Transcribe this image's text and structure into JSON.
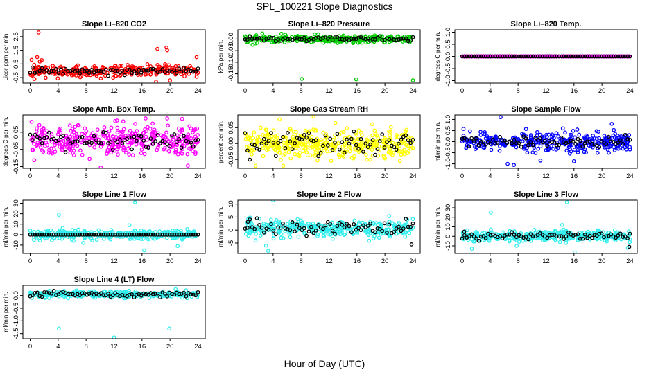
{
  "figure": {
    "title": "SPL_100221  Slope Diagnostics",
    "xlabel": "Hour of Day (UTC)"
  },
  "colors": {
    "black": "#000000"
  },
  "chart_data": [
    {
      "type": "scatter",
      "title": "Slope Li–820 CO2",
      "ylabel": "Licor ppm per min.",
      "xlim": [
        0,
        24
      ],
      "xticks": [
        "0",
        "4",
        "8",
        "12",
        "16",
        "20",
        "24"
      ],
      "ylim": [
        -0.9,
        3.0
      ],
      "yticks": [
        {
          "v": -0.5,
          "label": "-0.5"
        },
        {
          "v": 0.5,
          "label": "0.5"
        },
        {
          "v": 1.5,
          "label": "1.5"
        },
        {
          "v": 2.5,
          "label": "2.5"
        }
      ],
      "color": "#ff0000",
      "series": [
        {
          "name": "all",
          "center": 0,
          "spread": 0.22,
          "count": 300,
          "seed": 11,
          "outliers": [
            [
              1.2,
              2.8
            ],
            [
              1.0,
              1.0
            ],
            [
              0.2,
              0.8
            ],
            [
              18.2,
              1.6
            ],
            [
              19.5,
              1.7
            ],
            [
              19.6,
              1.5
            ],
            [
              23.8,
              1.0
            ],
            [
              18.0,
              -0.8
            ],
            [
              20,
              -0.7
            ],
            [
              0.6,
              -0.6
            ]
          ]
        },
        {
          "name": "hourly",
          "center": 0,
          "spread": 0.12,
          "count": 72,
          "seed": 12,
          "outliers": []
        }
      ]
    },
    {
      "type": "scatter",
      "title": "Slope Li–820 Pressure",
      "ylabel": "kPa per min.",
      "xlim": [
        0,
        24
      ],
      "xticks": [
        "0",
        "4",
        "8",
        "12",
        "16",
        "20",
        "24"
      ],
      "ylim": [
        -0.19,
        0.04
      ],
      "yticks": [
        {
          "v": 0.0,
          "label": "0.00"
        },
        {
          "v": -0.05,
          "label": "-0.05"
        },
        {
          "v": -0.1,
          "label": "-0.10"
        },
        {
          "v": -0.15,
          "label": "-0.15"
        }
      ],
      "color": "#00cc00",
      "series": [
        {
          "name": "all",
          "center": 0,
          "spread": 0.008,
          "count": 300,
          "seed": 21,
          "outliers": [
            [
              8.1,
              -0.172
            ],
            [
              15.9,
              -0.174
            ],
            [
              24,
              -0.178
            ],
            [
              0.2,
              -0.012
            ]
          ]
        },
        {
          "name": "hourly",
          "center": 0,
          "spread": 0.005,
          "count": 72,
          "seed": 22,
          "outliers": []
        }
      ]
    },
    {
      "type": "scatter",
      "title": "Slope Li–820 Temp.",
      "ylabel": "degrees C per min.",
      "xlim": [
        0,
        24
      ],
      "xticks": [
        "0",
        "4",
        "8",
        "12",
        "16",
        "20",
        "24"
      ],
      "ylim": [
        -1.1,
        1.1
      ],
      "yticks": [
        {
          "v": -1,
          "label": "-1.0"
        },
        {
          "v": -0.5,
          "label": "-0.5"
        },
        {
          "v": 0,
          "label": "0.0"
        },
        {
          "v": 0.5,
          "label": "0.5"
        },
        {
          "v": 1,
          "label": "1.0"
        }
      ],
      "color": "#ff00ff",
      "series": [
        {
          "name": "all",
          "center": 0,
          "spread": 0.0,
          "count": 300,
          "seed": 31,
          "outliers": []
        },
        {
          "name": "hourly",
          "center": 0,
          "spread": 0.0,
          "count": 72,
          "seed": 32,
          "outliers": []
        }
      ]
    },
    {
      "type": "scatter",
      "title": "Slope Amb. Box Temp.",
      "ylabel": "degrees C per min.",
      "xlim": [
        0,
        24
      ],
      "xticks": [
        "0",
        "4",
        "8",
        "12",
        "16",
        "20",
        "24"
      ],
      "ylim": [
        -0.16,
        0.15
      ],
      "yticks": [
        {
          "v": -0.15,
          "label": "-0.15"
        },
        {
          "v": -0.05,
          "label": "-0.05"
        },
        {
          "v": 0.05,
          "label": "0.05"
        }
      ],
      "color": "#ff00ff",
      "series": [
        {
          "name": "all",
          "center": 0,
          "spread": 0.045,
          "count": 380,
          "seed": 41,
          "outliers": [
            [
              10.1,
              -0.155
            ],
            [
              16.5,
              0.13
            ],
            [
              19.6,
              0.13
            ],
            [
              0.2,
              0.11
            ]
          ]
        },
        {
          "name": "hourly",
          "center": 0,
          "spread": 0.025,
          "count": 72,
          "seed": 42,
          "outliers": []
        }
      ]
    },
    {
      "type": "scatter",
      "title": "Slope Gas Stream RH",
      "ylabel": "percent per min.",
      "xlim": [
        0,
        24
      ],
      "xticks": [
        "0",
        "4",
        "8",
        "12",
        "16",
        "20",
        "24"
      ],
      "ylim": [
        -0.078,
        0.09
      ],
      "yticks": [
        {
          "v": -0.05,
          "label": "-0.05"
        },
        {
          "v": 0,
          "label": "0.00"
        },
        {
          "v": 0.05,
          "label": "0.05"
        }
      ],
      "color": "#ffff00",
      "series": [
        {
          "name": "all",
          "center": 0,
          "spread": 0.022,
          "count": 420,
          "seed": 51,
          "outliers": [
            [
              9.8,
              0.085
            ],
            [
              1.5,
              -0.07
            ]
          ]
        },
        {
          "name": "hourly",
          "center": 0,
          "spread": 0.02,
          "count": 72,
          "seed": 52,
          "outliers": []
        }
      ]
    },
    {
      "type": "scatter",
      "title": "Slope Sample Flow",
      "ylabel": "ml/min per min.",
      "xlim": [
        0,
        24
      ],
      "xticks": [
        "0",
        "4",
        "8",
        "12",
        "16",
        "20",
        "24"
      ],
      "ylim": [
        -1.2,
        1.2
      ],
      "yticks": [
        {
          "v": -1,
          "label": "-1.0"
        },
        {
          "v": -0.5,
          "label": "-0.5"
        },
        {
          "v": 0,
          "label": "0.0"
        },
        {
          "v": 0.5,
          "label": "0.5"
        },
        {
          "v": 1,
          "label": "1.0"
        }
      ],
      "color": "#0000ff",
      "series": [
        {
          "name": "all",
          "center": 0,
          "spread": 0.22,
          "count": 360,
          "seed": 61,
          "outliers": [
            [
              5.5,
              1.1
            ],
            [
              6.5,
              -1.0
            ],
            [
              7.4,
              -1.05
            ],
            [
              11.2,
              -0.85
            ],
            [
              14.4,
              0.6
            ],
            [
              21.4,
              0.8
            ],
            [
              19.5,
              0.45
            ]
          ]
        },
        {
          "name": "hourly",
          "center": 0,
          "spread": 0.1,
          "count": 72,
          "seed": 62,
          "outliers": []
        }
      ]
    },
    {
      "type": "scatter",
      "title": "Slope Line 1 Flow",
      "ylabel": "ml/min per min.",
      "xlim": [
        0,
        24
      ],
      "xticks": [
        "0",
        "4",
        "8",
        "12",
        "16",
        "20",
        "24"
      ],
      "ylim": [
        -18,
        33
      ],
      "yticks": [
        {
          "v": -10,
          "label": "-10"
        },
        {
          "v": 0,
          "label": "0"
        },
        {
          "v": 10,
          "label": "10"
        },
        {
          "v": 20,
          "label": "20"
        },
        {
          "v": 30,
          "label": "30"
        }
      ],
      "color": "#33eeee",
      "series": [
        {
          "name": "all",
          "center": 0,
          "spread": 2.2,
          "count": 340,
          "seed": 71,
          "outliers": [
            [
              4.1,
              19
            ],
            [
              15.0,
              31
            ],
            [
              14.2,
              9
            ],
            [
              7.6,
              -8
            ],
            [
              16.3,
              -15
            ],
            [
              21.1,
              -11
            ]
          ]
        },
        {
          "name": "hourly",
          "center": 0,
          "spread": 0.0,
          "count": 72,
          "seed": 72,
          "outliers": []
        }
      ]
    },
    {
      "type": "scatter",
      "title": "Slope Line 2 Flow",
      "ylabel": "ml/min per min.",
      "xlim": [
        0,
        24
      ],
      "xticks": [
        "0",
        "4",
        "8",
        "12",
        "16",
        "20",
        "24"
      ],
      "ylim": [
        -9,
        11.5
      ],
      "yticks": [
        {
          "v": -5,
          "label": "-5"
        },
        {
          "v": 0,
          "label": "0"
        },
        {
          "v": 5,
          "label": "5"
        },
        {
          "v": 10,
          "label": "10"
        }
      ],
      "color": "#33eeee",
      "series": [
        {
          "name": "all",
          "center": 0.5,
          "spread": 1.6,
          "count": 360,
          "seed": 81,
          "outliers": [
            [
              4.0,
              11.5
            ],
            [
              3.3,
              -8
            ],
            [
              3.0,
              -6
            ],
            [
              23.2,
              4
            ],
            [
              1.5,
              -4
            ]
          ]
        },
        {
          "name": "hourly",
          "center": 1.0,
          "spread": 1.3,
          "count": 72,
          "seed": 82,
          "outliers": [
            [
              23.8,
              -5.5
            ],
            [
              0.4,
              3.2
            ]
          ]
        }
      ]
    },
    {
      "type": "scatter",
      "title": "Slope Line 3 Flow",
      "ylabel": "ml/min per min.",
      "xlim": [
        0,
        24
      ],
      "xticks": [
        "0",
        "4",
        "8",
        "12",
        "16",
        "20",
        "24"
      ],
      "ylim": [
        -18,
        38
      ],
      "yticks": [
        {
          "v": -10,
          "label": "-10"
        },
        {
          "v": 0,
          "label": "0"
        },
        {
          "v": 10,
          "label": "10"
        },
        {
          "v": 20,
          "label": "20"
        },
        {
          "v": 30,
          "label": "30"
        }
      ],
      "color": "#33eeee",
      "series": [
        {
          "name": "all",
          "center": 0,
          "spread": 2.8,
          "count": 360,
          "seed": 91,
          "outliers": [
            [
              4.1,
              25
            ],
            [
              15.0,
              36
            ],
            [
              16.1,
              -17
            ],
            [
              1.4,
              -13
            ],
            [
              7.8,
              -10
            ],
            [
              14.3,
              12
            ],
            [
              23.7,
              -12
            ]
          ]
        },
        {
          "name": "hourly",
          "center": 0,
          "spread": 2.0,
          "count": 72,
          "seed": 92,
          "outliers": [
            [
              23.9,
              -11
            ],
            [
              0.3,
              5
            ]
          ]
        }
      ]
    },
    {
      "type": "scatter",
      "title": "Slope Line 4 (LT) Flow",
      "ylabel": "ml/min per min.",
      "xlim": [
        0,
        24
      ],
      "xticks": [
        "0",
        "4",
        "8",
        "12",
        "16",
        "20",
        "24"
      ],
      "ylim": [
        -1.7,
        0.4
      ],
      "yticks": [
        {
          "v": -1.5,
          "label": "-1.5"
        },
        {
          "v": -1,
          "label": "-1.0"
        },
        {
          "v": -0.5,
          "label": "-0.5"
        },
        {
          "v": 0,
          "label": "0.0"
        }
      ],
      "color": "#33eeee",
      "series": [
        {
          "name": "all",
          "center": 0.05,
          "spread": 0.06,
          "count": 320,
          "seed": 101,
          "outliers": [
            [
              4.1,
              -1.3
            ],
            [
              12.0,
              -1.65
            ],
            [
              19.9,
              -1.3
            ],
            [
              20.8,
              0.25
            ]
          ]
        },
        {
          "name": "hourly",
          "center": 0.05,
          "spread": 0.05,
          "count": 72,
          "seed": 102,
          "outliers": []
        }
      ]
    }
  ]
}
